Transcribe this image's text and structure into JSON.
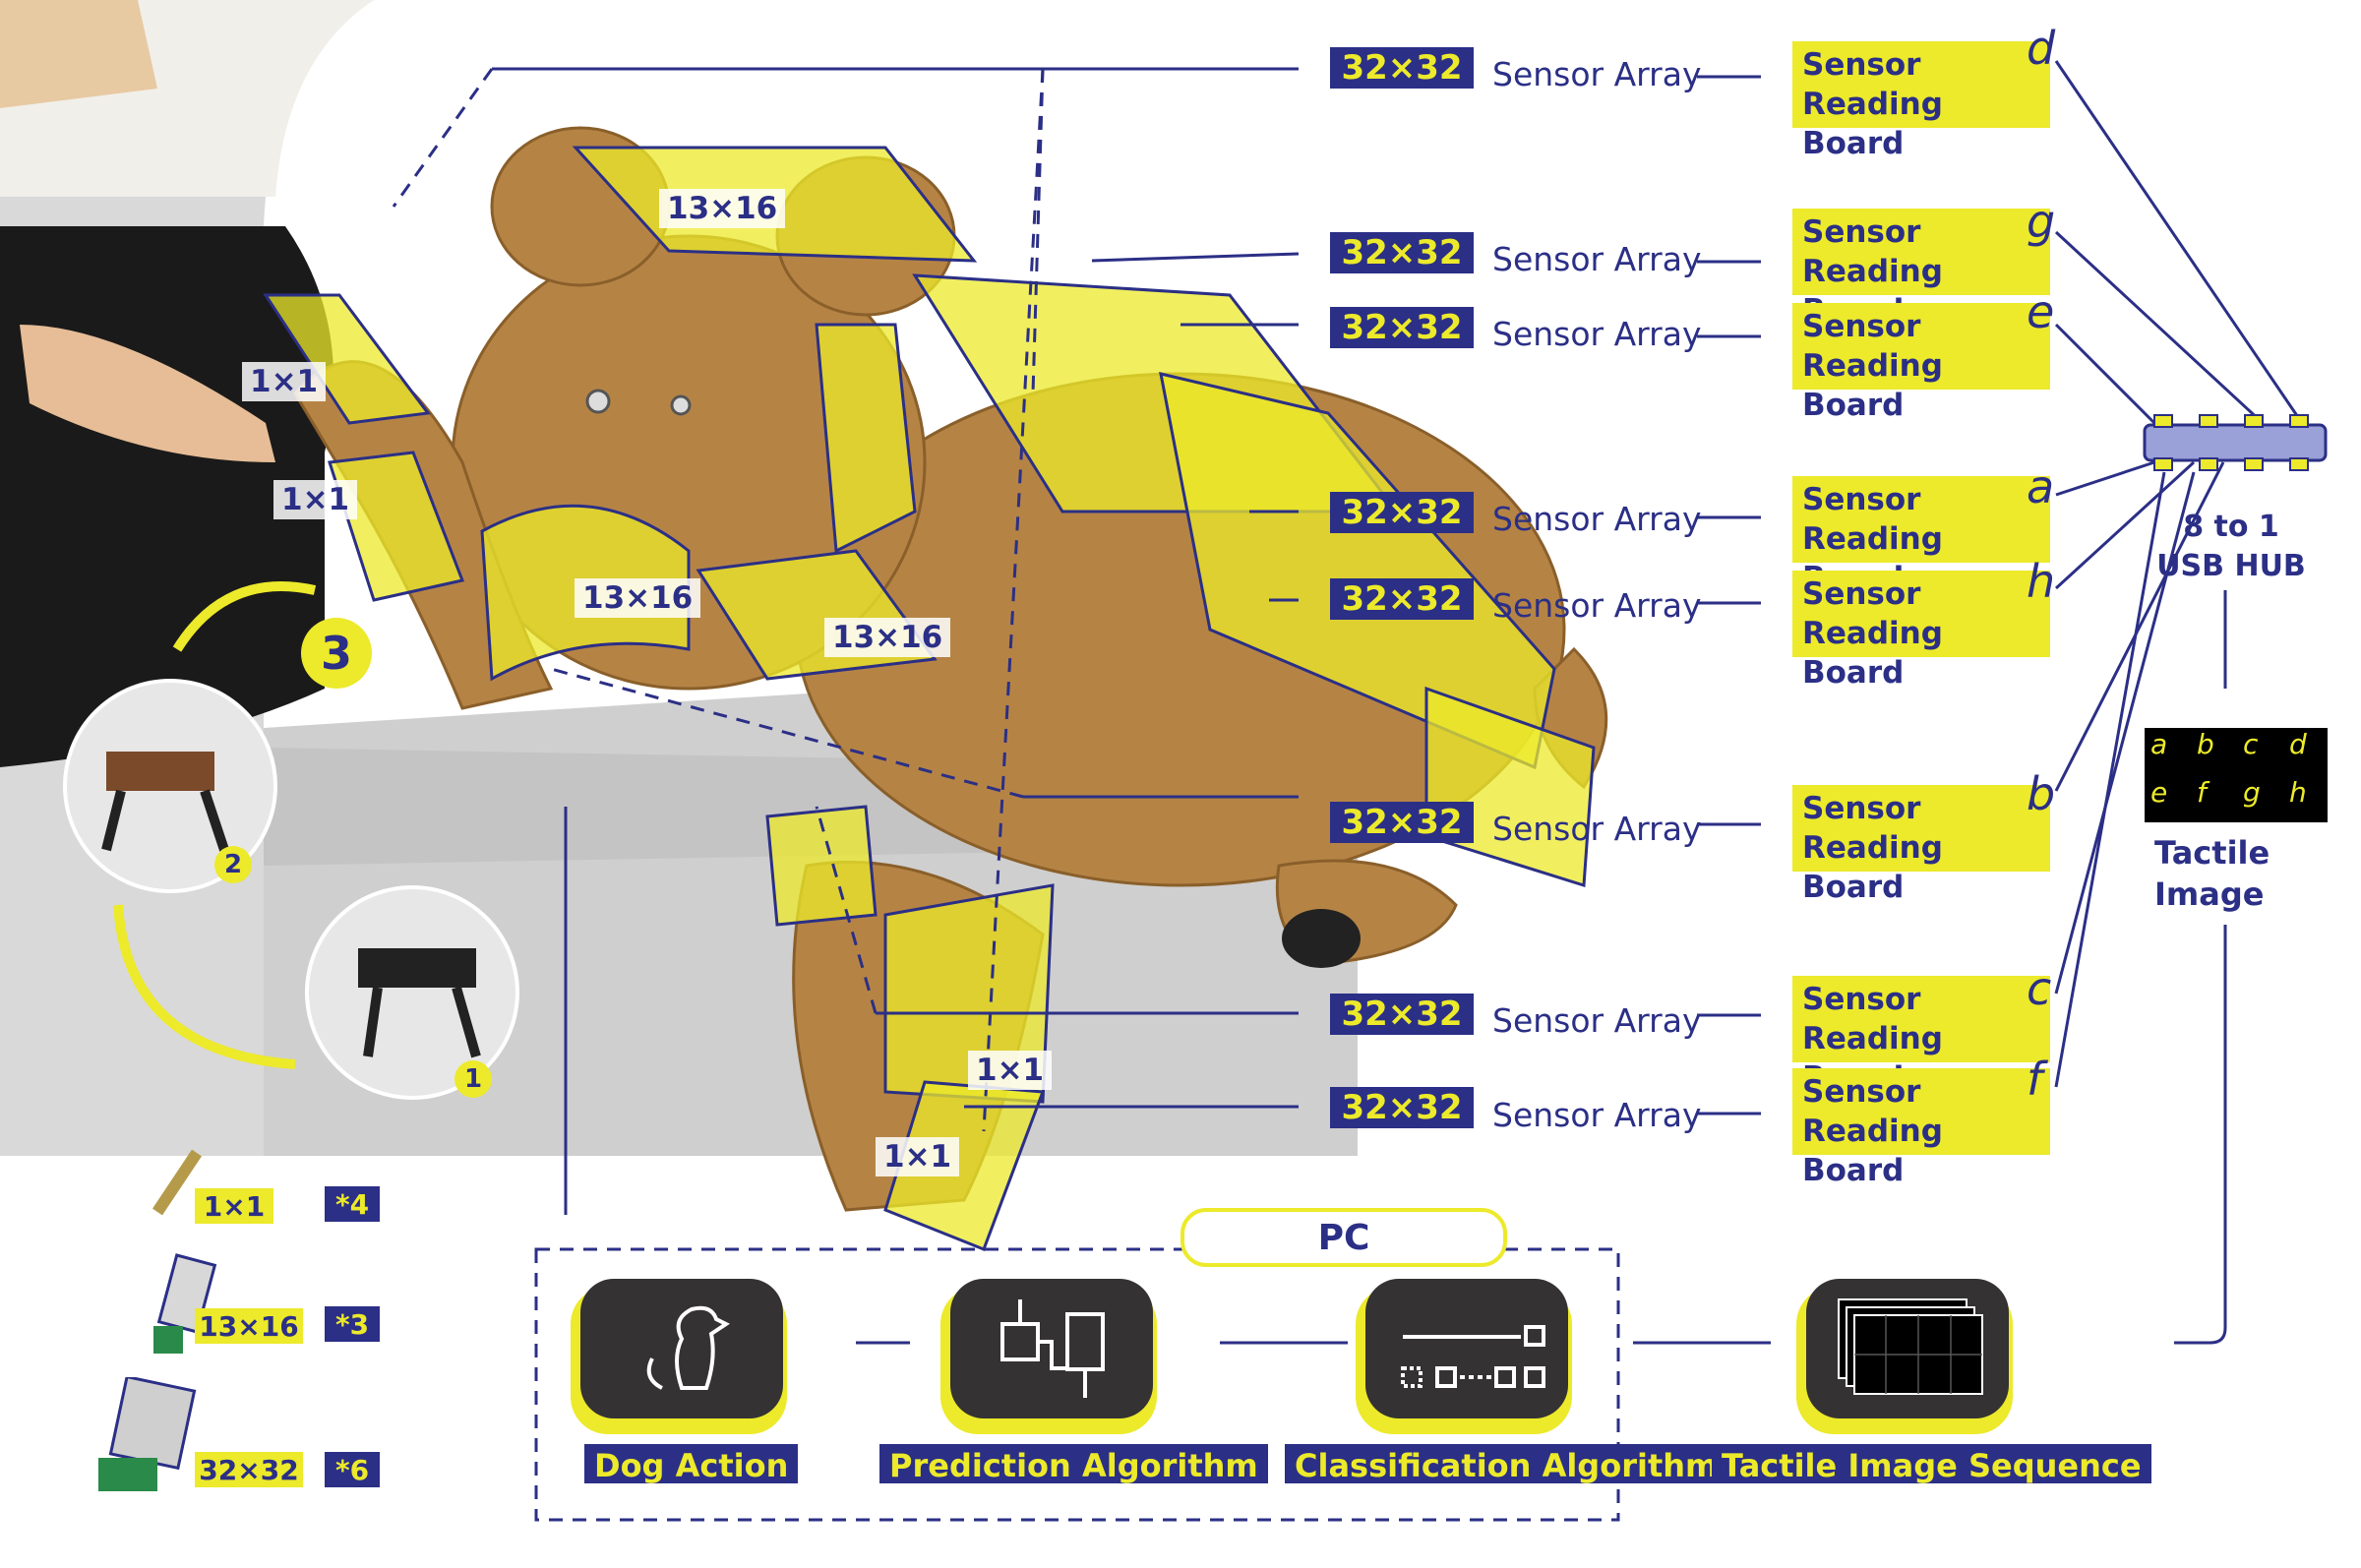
{
  "colors": {
    "navy": "#2b2f86",
    "yellow": "#ecea2a",
    "dark": "#343232",
    "fur": "#b58445"
  },
  "sensor_rows": [
    {
      "size": "32×32",
      "array": "Sensor Array",
      "board": [
        "Sensor",
        "Reading Board"
      ],
      "letter": "d"
    },
    {
      "size": "32×32",
      "array": "Sensor Array",
      "board": [
        "Sensor",
        "Reading Board"
      ],
      "letter": "g"
    },
    {
      "size": "32×32",
      "array": "Sensor Array",
      "board": [
        "Sensor",
        "Reading Board"
      ],
      "letter": "e"
    },
    {
      "size": "32×32",
      "array": "Sensor Array",
      "board": [
        "Sensor",
        "Reading Board"
      ],
      "letter": "a"
    },
    {
      "size": "32×32",
      "array": "Sensor Array",
      "board": [
        "Sensor",
        "Reading Board"
      ],
      "letter": "h"
    },
    {
      "size": "32×32",
      "array": "Sensor Array",
      "board": [
        "Sensor",
        "Reading Board"
      ],
      "letter": "b"
    },
    {
      "size": "32×32",
      "array": "Sensor Array",
      "board": [
        "Sensor",
        "Reading Board"
      ],
      "letter": "c"
    },
    {
      "size": "32×32",
      "array": "Sensor Array",
      "board": [
        "Sensor",
        "Reading Board"
      ],
      "letter": "f"
    }
  ],
  "hub": {
    "line1": "8 to 1",
    "line2": "USB HUB"
  },
  "tactile_image": {
    "label_line1": "Tactile",
    "label_line2": "Image",
    "cells": [
      "a",
      "b",
      "c",
      "d",
      "e",
      "f",
      "g",
      "h"
    ]
  },
  "patch_labels": {
    "top": "13×16",
    "paw_upper": "1×1",
    "paw_lower": "1×1",
    "chest": "13×16",
    "leg": "13×16",
    "foot_upper": "1×1",
    "foot_lower": "1×1"
  },
  "steps": {
    "step3": "3",
    "step2": "2",
    "step1": "1"
  },
  "legend": [
    {
      "size": "1×1",
      "count": "*4"
    },
    {
      "size": "13×16",
      "count": "*3"
    },
    {
      "size": "32×32",
      "count": "*6"
    }
  ],
  "pc": {
    "title": "PC",
    "blocks": [
      {
        "label": "Dog Action",
        "icon": "dog-icon"
      },
      {
        "label": "Prediction Algorithm",
        "icon": "prediction-flow-icon"
      },
      {
        "label": "Classification Algorithm",
        "icon": "classification-icon"
      },
      {
        "label": "Tactile Image Sequence",
        "icon": "image-stack-icon"
      }
    ]
  }
}
